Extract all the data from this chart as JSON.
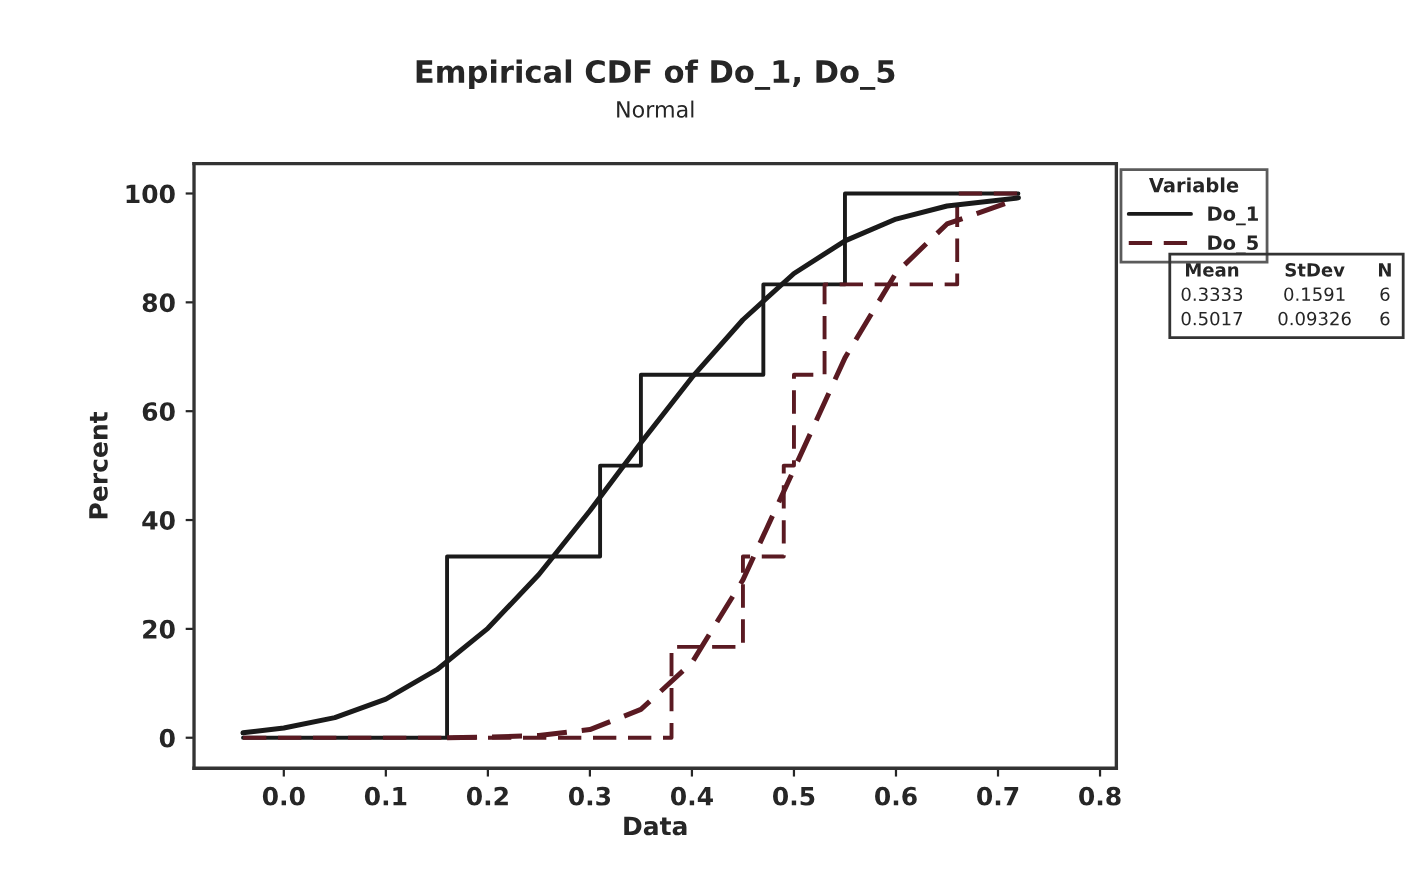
{
  "chart_data": {
    "type": "step",
    "title": "Empirical CDF of Do_1, Do_5",
    "subtitle": "Normal",
    "xlabel": "Data",
    "ylabel": "Percent",
    "legend_title": "Variable",
    "legend": "right",
    "xlim": [
      -0.088,
      0.816
    ],
    "ylim": [
      -5.6,
      105.5
    ],
    "xticks": [
      {
        "value": 0,
        "label": "0.0"
      },
      0.1,
      0.2,
      0.3,
      0.4,
      0.5,
      0.6,
      0.7,
      0.8
    ],
    "yticks": [
      0,
      20,
      40,
      60,
      80,
      100
    ],
    "grid": false,
    "marker": "none",
    "series": [
      {
        "name": "Do_1",
        "color": "#1a1a1a",
        "line_style": "solid",
        "x": [
          -0.04,
          0.16,
          0.31,
          0.35,
          0.47,
          0.55,
          0.72
        ],
        "values": [
          0,
          33.3,
          50,
          66.7,
          83.3,
          100,
          100
        ]
      },
      {
        "name": "Do_5",
        "color": "#5a1a22",
        "line_style": "dashed",
        "x": [
          -0.04,
          0.38,
          0.45,
          0.49,
          0.5,
          0.53,
          0.66,
          0.72
        ],
        "values": [
          0,
          16.7,
          33.3,
          50,
          66.7,
          83.3,
          100,
          100
        ]
      },
      {
        "type": "line",
        "color": "#1a1a1a",
        "line_style": "solid",
        "x": [
          -0.04,
          0.0,
          0.05,
          0.1,
          0.15,
          0.2,
          0.25,
          0.3,
          0.35,
          0.4,
          0.45,
          0.5,
          0.55,
          0.6,
          0.65,
          0.72
        ],
        "values": [
          0.9,
          1.8,
          3.7,
          7.1,
          12.5,
          20.1,
          30.0,
          41.7,
          54.2,
          66.2,
          76.8,
          85.3,
          91.3,
          95.3,
          97.7,
          99.2
        ]
      },
      {
        "type": "line",
        "color": "#5a1a22",
        "line_style": "dashed",
        "x": [
          0.16,
          0.2,
          0.25,
          0.3,
          0.35,
          0.4,
          0.45,
          0.5,
          0.55,
          0.6,
          0.65,
          0.72
        ],
        "values": [
          0.0,
          0.1,
          0.4,
          1.5,
          5.2,
          13.8,
          29.0,
          49.3,
          69.8,
          85.4,
          94.4,
          99.0
        ]
      }
    ],
    "annotations": [
      "Mean StDev N",
      "0.3333 0.1591 6",
      "0.5017 0.09326 6"
    ]
  }
}
